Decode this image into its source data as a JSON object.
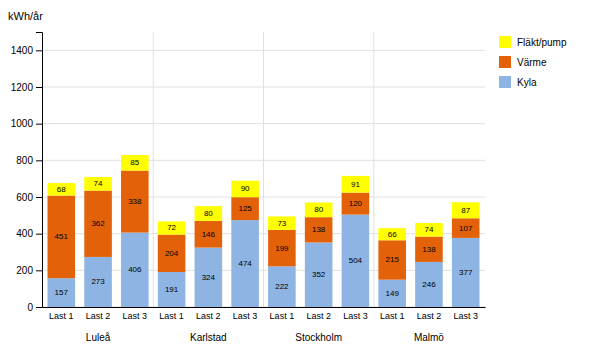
{
  "chart_data": {
    "type": "bar",
    "stacked": true,
    "data_labels": true,
    "grid": true,
    "legend": "right",
    "y_label": "kWh/år",
    "categories": [
      "Last 1",
      "Last 2",
      "Last 3",
      "Last 1",
      "Last 2",
      "Last 3",
      "Last 1",
      "Last 2",
      "Last 3",
      "Last 1",
      "Last 2",
      "Last 3"
    ],
    "group_labels": [
      "Luleå",
      "Karlstad",
      "Stockholm",
      "Malmö"
    ],
    "series": [
      {
        "name": "Kyla",
        "color": "#8db4e2",
        "values": [
          157,
          273,
          406,
          191,
          324,
          474,
          222,
          352,
          504,
          149,
          246,
          377
        ]
      },
      {
        "name": "Värme",
        "color": "#e36209",
        "values": [
          451,
          362,
          338,
          204,
          146,
          125,
          199,
          138,
          120,
          215,
          138,
          107
        ]
      },
      {
        "name": "Fläkt/pump",
        "color": "#ffff00",
        "values": [
          68,
          74,
          85,
          72,
          80,
          90,
          73,
          80,
          91,
          66,
          74,
          87
        ]
      }
    ],
    "ylim": [
      0,
      1500
    ],
    "yticks": [
      0,
      200,
      400,
      600,
      800,
      1000,
      1200,
      1400
    ]
  }
}
